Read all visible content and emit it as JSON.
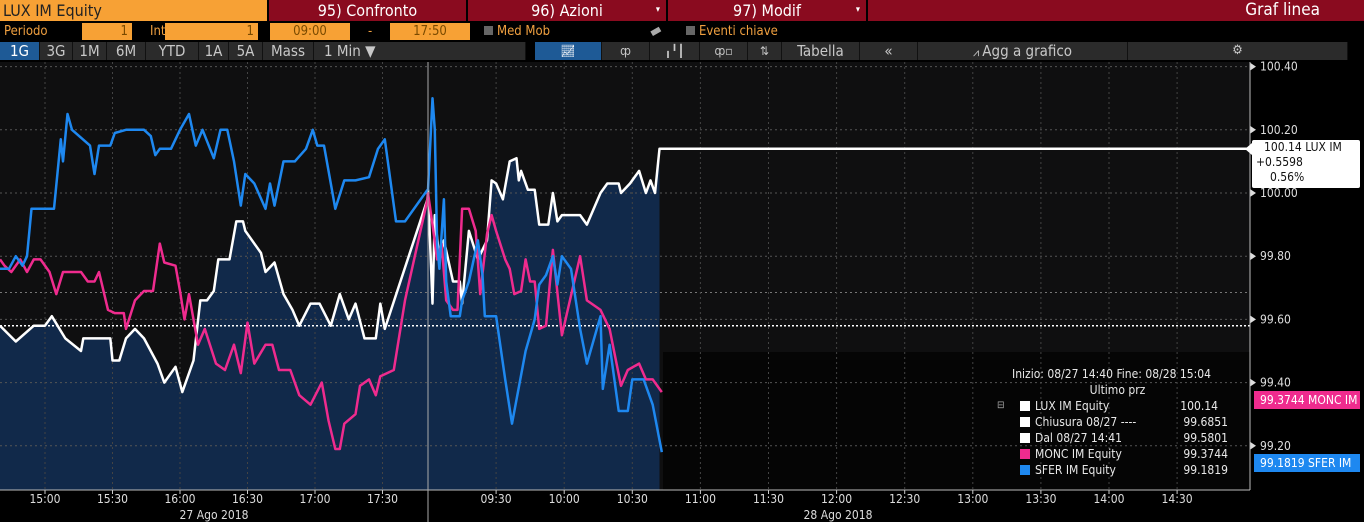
{
  "header": {
    "security": "LUX IM Equity",
    "menu": [
      {
        "label": "95) Confronto"
      },
      {
        "label": "96) Azioni"
      },
      {
        "label": "97) Modif"
      }
    ],
    "chart_type": "Graf linea"
  },
  "settings": {
    "period_label": "Periodo",
    "period_value": "1",
    "interval_label": "Intrv",
    "interval_value": "1",
    "start_time": "09:00",
    "dash": "-",
    "end_time": "17:50",
    "moving_avg": "Med Mob",
    "key_events": "Eventi chiave"
  },
  "toolbar": {
    "ranges": [
      "1G",
      "3G",
      "1M",
      "6M",
      "YTD",
      "1A",
      "5A",
      "Mass"
    ],
    "selected_range": "1G",
    "frequency": "1 Min ▼",
    "table": "Tabella",
    "collapse": "«",
    "add_to_chart": "Agg a grafico",
    "icons": [
      "line-chart-icon",
      "ohlc-icon",
      "bar-chart-icon",
      "event-chart-icon",
      "sort-icon",
      "gear-icon"
    ]
  },
  "colors": {
    "lux": "#ffffff",
    "monc": "#ef2b8e",
    "sfer": "#1e88f0",
    "fill": "#11294a",
    "accent": "#f7a135",
    "menu_bg": "#8a0b1f"
  },
  "callout": {
    "line1": "100.14 LUX IM",
    "line2": "+0.5598",
    "line3": "0.56%"
  },
  "tags": {
    "monc": "99.3744 MONC IM",
    "sfer": "99.1819 SFER IM"
  },
  "legend": {
    "range": "Inizio: 08/27 14:40 Fine: 08/28 15:04",
    "header": "Ultimo prz",
    "rows": [
      {
        "name": "LUX IM Equity",
        "value": "100.14",
        "color": "#ffffff"
      },
      {
        "name": "Chiusura 08/27 ----",
        "value": "99.6851",
        "color": "#ffffff"
      },
      {
        "name": "Dal 08/27 14:41",
        "value": "99.5801",
        "color": "#ffffff"
      },
      {
        "name": "MONC IM Equity",
        "value": "99.3744",
        "color": "#ef2b8e"
      },
      {
        "name": "SFER IM Equity",
        "value": "99.1819",
        "color": "#1e88f0"
      }
    ]
  },
  "chart_data": {
    "type": "line",
    "ylim": [
      99.1,
      100.45
    ],
    "y_ticks": [
      "100.40",
      "100.20",
      "100.00",
      "99.80",
      "99.60",
      "99.40",
      "99.20"
    ],
    "x_ticks_day1": [
      "15:00",
      "15:30",
      "16:00",
      "16:30",
      "17:00",
      "17:30"
    ],
    "x_ticks_day2": [
      "09:30",
      "10:00",
      "10:30",
      "11:00",
      "11:30",
      "12:00",
      "12:30",
      "13:00",
      "13:30",
      "14:00",
      "14:30"
    ],
    "dates": [
      "27 Ago 2018",
      "28 Ago 2018"
    ],
    "session_day1": [
      "14:40",
      "17:50"
    ],
    "session_day2": [
      "09:00",
      "15:04"
    ],
    "reference_lines": {
      "close": 99.6851,
      "since": 99.5801
    },
    "grid": true,
    "series": [
      {
        "name": "LUX IM Equity",
        "color": "#ffffff",
        "day1": [
          [
            "14:40",
            99.58
          ],
          [
            "14:47",
            99.53
          ],
          [
            "14:55",
            99.58
          ],
          [
            "15:00",
            99.58
          ],
          [
            "15:03",
            99.61
          ],
          [
            "15:09",
            99.54
          ],
          [
            "15:16",
            99.5
          ],
          [
            "15:17",
            99.54
          ],
          [
            "15:29",
            99.54
          ],
          [
            "15:30",
            99.47
          ],
          [
            "15:33",
            99.47
          ],
          [
            "15:36",
            99.54
          ],
          [
            "15:40",
            99.57
          ],
          [
            "15:44",
            99.54
          ],
          [
            "15:50",
            99.46
          ],
          [
            "15:53",
            99.4
          ],
          [
            "15:58",
            99.45
          ],
          [
            "16:01",
            99.37
          ],
          [
            "16:06",
            99.47
          ],
          [
            "16:09",
            99.66
          ],
          [
            "16:12",
            99.66
          ],
          [
            "16:15",
            99.69
          ],
          [
            "16:17",
            99.79
          ],
          [
            "16:22",
            99.79
          ],
          [
            "16:25",
            99.91
          ],
          [
            "16:28",
            99.91
          ],
          [
            "16:29",
            99.88
          ],
          [
            "16:31",
            99.86
          ],
          [
            "16:36",
            99.81
          ],
          [
            "16:38",
            99.75
          ],
          [
            "16:42",
            99.78
          ],
          [
            "16:46",
            99.68
          ],
          [
            "16:50",
            99.63
          ],
          [
            "16:53",
            99.58
          ],
          [
            "16:58",
            99.65
          ],
          [
            "17:02",
            99.65
          ],
          [
            "17:07",
            99.58
          ],
          [
            "17:11",
            99.68
          ],
          [
            "17:15",
            99.6
          ],
          [
            "17:18",
            99.65
          ],
          [
            "17:22",
            99.54
          ],
          [
            "17:27",
            99.54
          ],
          [
            "17:29",
            99.65
          ],
          [
            "17:31",
            99.57
          ],
          [
            "17:50",
            99.98
          ]
        ],
        "day2": [
          [
            "09:00",
            100.01
          ],
          [
            "09:02",
            99.65
          ],
          [
            "09:03",
            99.93
          ],
          [
            "09:05",
            99.79
          ],
          [
            "09:07",
            99.85
          ],
          [
            "09:11",
            99.72
          ],
          [
            "09:14",
            99.72
          ],
          [
            "09:15",
            99.65
          ],
          [
            "09:18",
            99.88
          ],
          [
            "09:22",
            99.79
          ],
          [
            "09:26",
            99.85
          ],
          [
            "09:28",
            100.04
          ],
          [
            "09:30",
            100.03
          ],
          [
            "09:33",
            99.98
          ],
          [
            "09:36",
            100.1
          ],
          [
            "09:39",
            100.11
          ],
          [
            "09:40",
            100.04
          ],
          [
            "09:41",
            100.07
          ],
          [
            "09:44",
            100.01
          ],
          [
            "09:47",
            100.01
          ],
          [
            "09:49",
            99.9
          ],
          [
            "09:53",
            99.9
          ],
          [
            "09:55",
            100.0
          ],
          [
            "09:57",
            99.91
          ],
          [
            "09:59",
            99.93
          ],
          [
            "10:07",
            99.93
          ],
          [
            "10:10",
            99.9
          ],
          [
            "10:16",
            100.0
          ],
          [
            "10:19",
            100.03
          ],
          [
            "10:24",
            100.03
          ],
          [
            "10:25",
            100.0
          ],
          [
            "10:29",
            100.03
          ],
          [
            "10:33",
            100.07
          ],
          [
            "10:36",
            100.0
          ],
          [
            "10:38",
            100.04
          ],
          [
            "10:40",
            100.0
          ],
          [
            "10:42",
            100.14
          ],
          [
            "15:04",
            100.14
          ]
        ]
      },
      {
        "name": "MONC IM Equity",
        "color": "#ef2b8e",
        "day1": [
          [
            "14:40",
            99.79
          ],
          [
            "14:42",
            99.77
          ],
          [
            "14:45",
            99.75
          ],
          [
            "14:49",
            99.79
          ],
          [
            "14:52",
            99.75
          ],
          [
            "14:55",
            99.79
          ],
          [
            "14:58",
            99.79
          ],
          [
            "15:02",
            99.75
          ],
          [
            "15:05",
            99.68
          ],
          [
            "15:08",
            99.75
          ],
          [
            "15:16",
            99.75
          ],
          [
            "15:19",
            99.72
          ],
          [
            "15:22",
            99.72
          ],
          [
            "15:24",
            99.75
          ],
          [
            "15:28",
            99.63
          ],
          [
            "15:31",
            99.62
          ],
          [
            "15:35",
            99.62
          ],
          [
            "15:36",
            99.57
          ],
          [
            "15:40",
            99.66
          ],
          [
            "15:44",
            99.69
          ],
          [
            "15:48",
            99.69
          ],
          [
            "15:51",
            99.84
          ],
          [
            "15:53",
            99.78
          ],
          [
            "15:58",
            99.77
          ],
          [
            "16:00",
            99.69
          ],
          [
            "16:02",
            99.6
          ],
          [
            "16:04",
            99.68
          ],
          [
            "16:08",
            99.52
          ],
          [
            "16:11",
            99.57
          ],
          [
            "16:16",
            99.46
          ],
          [
            "16:20",
            99.44
          ],
          [
            "16:24",
            99.52
          ],
          [
            "16:27",
            99.43
          ],
          [
            "16:30",
            99.59
          ],
          [
            "16:33",
            99.46
          ],
          [
            "16:38",
            99.52
          ],
          [
            "16:41",
            99.52
          ],
          [
            "16:44",
            99.44
          ],
          [
            "16:49",
            99.44
          ],
          [
            "16:53",
            99.36
          ],
          [
            "16:58",
            99.33
          ],
          [
            "17:03",
            99.4
          ],
          [
            "17:06",
            99.28
          ],
          [
            "17:09",
            99.19
          ],
          [
            "17:11",
            99.19
          ],
          [
            "17:13",
            99.27
          ],
          [
            "17:18",
            99.3
          ],
          [
            "17:20",
            99.39
          ],
          [
            "17:24",
            99.41
          ],
          [
            "17:27",
            99.36
          ],
          [
            "17:29",
            99.42
          ],
          [
            "17:35",
            99.44
          ],
          [
            "17:40",
            99.66
          ],
          [
            "17:50",
            99.98
          ]
        ],
        "day2": [
          [
            "09:00",
            100.0
          ],
          [
            "09:02",
            99.9
          ],
          [
            "09:04",
            99.79
          ],
          [
            "09:06",
            99.84
          ],
          [
            "09:08",
            99.66
          ],
          [
            "09:11",
            99.63
          ],
          [
            "09:13",
            99.63
          ],
          [
            "09:15",
            99.95
          ],
          [
            "09:18",
            99.95
          ],
          [
            "09:21",
            99.88
          ],
          [
            "09:23",
            99.68
          ],
          [
            "09:26",
            99.87
          ],
          [
            "09:28",
            99.93
          ],
          [
            "09:30",
            99.88
          ],
          [
            "09:34",
            99.79
          ],
          [
            "09:36",
            99.76
          ],
          [
            "09:38",
            99.68
          ],
          [
            "09:41",
            99.69
          ],
          [
            "09:43",
            99.79
          ],
          [
            "09:45",
            99.72
          ],
          [
            "09:47",
            99.72
          ],
          [
            "09:49",
            99.57
          ],
          [
            "09:52",
            99.58
          ],
          [
            "09:55",
            99.82
          ],
          [
            "09:59",
            99.55
          ],
          [
            "10:07",
            99.8
          ],
          [
            "10:10",
            99.66
          ],
          [
            "10:16",
            99.63
          ],
          [
            "10:20",
            99.57
          ],
          [
            "10:25",
            99.39
          ],
          [
            "10:28",
            99.44
          ],
          [
            "10:33",
            99.46
          ],
          [
            "10:36",
            99.41
          ],
          [
            "10:39",
            99.41
          ],
          [
            "10:43",
            99.37
          ]
        ]
      },
      {
        "name": "SFER IM Equity",
        "color": "#1e88f0",
        "day1": [
          [
            "14:40",
            99.76
          ],
          [
            "14:44",
            99.76
          ],
          [
            "14:47",
            99.8
          ],
          [
            "14:50",
            99.77
          ],
          [
            "14:52",
            99.8
          ],
          [
            "14:54",
            99.95
          ],
          [
            "15:04",
            99.95
          ],
          [
            "15:07",
            100.17
          ],
          [
            "15:08",
            100.1
          ],
          [
            "15:10",
            100.25
          ],
          [
            "15:12",
            100.2
          ],
          [
            "15:20",
            100.15
          ],
          [
            "15:22",
            100.06
          ],
          [
            "15:24",
            100.15
          ],
          [
            "15:29",
            100.15
          ],
          [
            "15:31",
            100.19
          ],
          [
            "15:36",
            100.2
          ],
          [
            "15:40",
            100.2
          ],
          [
            "15:44",
            100.2
          ],
          [
            "15:47",
            100.18
          ],
          [
            "15:49",
            100.12
          ],
          [
            "15:51",
            100.14
          ],
          [
            "15:56",
            100.14
          ],
          [
            "16:00",
            100.2
          ],
          [
            "16:04",
            100.25
          ],
          [
            "16:07",
            100.15
          ],
          [
            "16:10",
            100.2
          ],
          [
            "16:15",
            100.11
          ],
          [
            "16:18",
            100.2
          ],
          [
            "16:21",
            100.2
          ],
          [
            "16:24",
            100.1
          ],
          [
            "16:27",
            99.96
          ],
          [
            "16:29",
            100.06
          ],
          [
            "16:33",
            100.03
          ],
          [
            "16:38",
            99.95
          ],
          [
            "16:40",
            100.03
          ],
          [
            "16:42",
            99.96
          ],
          [
            "16:46",
            100.1
          ],
          [
            "16:51",
            100.1
          ],
          [
            "16:56",
            100.14
          ],
          [
            "16:59",
            100.2
          ],
          [
            "17:01",
            100.15
          ],
          [
            "17:04",
            100.15
          ],
          [
            "17:07",
            100.03
          ],
          [
            "17:09",
            99.95
          ],
          [
            "17:13",
            100.04
          ],
          [
            "17:18",
            100.04
          ],
          [
            "17:24",
            100.05
          ],
          [
            "17:28",
            100.14
          ],
          [
            "17:31",
            100.17
          ],
          [
            "17:36",
            99.91
          ],
          [
            "17:40",
            99.91
          ],
          [
            "17:50",
            100.01
          ]
        ],
        "day2": [
          [
            "09:00",
            100.01
          ],
          [
            "09:02",
            100.3
          ],
          [
            "09:03",
            100.2
          ],
          [
            "09:04",
            99.84
          ],
          [
            "09:05",
            99.76
          ],
          [
            "09:07",
            99.98
          ],
          [
            "09:08",
            99.72
          ],
          [
            "09:10",
            99.61
          ],
          [
            "09:14",
            99.61
          ],
          [
            "09:15",
            99.66
          ],
          [
            "09:18",
            99.72
          ],
          [
            "09:22",
            99.85
          ],
          [
            "09:24",
            99.74
          ],
          [
            "09:25",
            99.61
          ],
          [
            "09:30",
            99.61
          ],
          [
            "09:34",
            99.41
          ],
          [
            "09:37",
            99.27
          ],
          [
            "09:43",
            99.5
          ],
          [
            "09:47",
            99.6
          ],
          [
            "09:49",
            99.71
          ],
          [
            "09:52",
            99.74
          ],
          [
            "09:55",
            99.8
          ],
          [
            "09:57",
            99.71
          ],
          [
            "09:59",
            99.8
          ],
          [
            "10:03",
            99.76
          ],
          [
            "10:07",
            99.57
          ],
          [
            "10:10",
            99.46
          ],
          [
            "10:16",
            99.61
          ],
          [
            "10:17",
            99.38
          ],
          [
            "10:20",
            99.52
          ],
          [
            "10:24",
            99.31
          ],
          [
            "10:28",
            99.31
          ],
          [
            "10:30",
            99.41
          ],
          [
            "10:35",
            99.41
          ],
          [
            "10:39",
            99.33
          ],
          [
            "10:43",
            99.18
          ]
        ]
      }
    ]
  }
}
